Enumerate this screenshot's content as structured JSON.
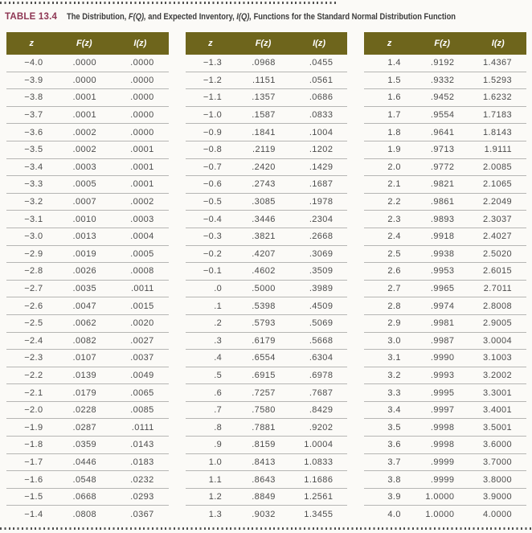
{
  "caption": {
    "label": "TABLE 13.4",
    "title_parts": {
      "p1": "The Distribution, ",
      "fq": "F(Q),",
      "p2": " and Expected Inventory, ",
      "iq": "I(Q),",
      "p3": " Functions for the Standard Normal Distribution Function"
    }
  },
  "columns": {
    "z": "z",
    "f": "F(z)",
    "i": "I(z)"
  },
  "colors": {
    "page_bg": "#fbfaf7",
    "header_bg": "#6e651c",
    "header_text": "#ffffff",
    "caption_label": "#8e3653",
    "title_text": "#3b3b3b",
    "body_text": "#4c4c4c",
    "rule": "#b6b6b4",
    "dots": "#515150"
  },
  "table": {
    "groups": [
      {
        "rows": [
          [
            "−4.0",
            ".0000",
            ".0000"
          ],
          [
            "−3.9",
            ".0000",
            ".0000"
          ],
          [
            "−3.8",
            ".0001",
            ".0000"
          ],
          [
            "−3.7",
            ".0001",
            ".0000"
          ],
          [
            "−3.6",
            ".0002",
            ".0000"
          ],
          [
            "−3.5",
            ".0002",
            ".0001"
          ],
          [
            "−3.4",
            ".0003",
            ".0001"
          ],
          [
            "−3.3",
            ".0005",
            ".0001"
          ],
          [
            "−3.2",
            ".0007",
            ".0002"
          ],
          [
            "−3.1",
            ".0010",
            ".0003"
          ],
          [
            "−3.0",
            ".0013",
            ".0004"
          ],
          [
            "−2.9",
            ".0019",
            ".0005"
          ],
          [
            "−2.8",
            ".0026",
            ".0008"
          ],
          [
            "−2.7",
            ".0035",
            ".0011"
          ],
          [
            "−2.6",
            ".0047",
            ".0015"
          ],
          [
            "−2.5",
            ".0062",
            ".0020"
          ],
          [
            "−2.4",
            ".0082",
            ".0027"
          ],
          [
            "−2.3",
            ".0107",
            ".0037"
          ],
          [
            "−2.2",
            ".0139",
            ".0049"
          ],
          [
            "−2.1",
            ".0179",
            ".0065"
          ],
          [
            "−2.0",
            ".0228",
            ".0085"
          ],
          [
            "−1.9",
            ".0287",
            ".0111"
          ],
          [
            "−1.8",
            ".0359",
            ".0143"
          ],
          [
            "−1.7",
            ".0446",
            ".0183"
          ],
          [
            "−1.6",
            ".0548",
            ".0232"
          ],
          [
            "−1.5",
            ".0668",
            ".0293"
          ],
          [
            "−1.4",
            ".0808",
            ".0367"
          ]
        ]
      },
      {
        "rows": [
          [
            "−1.3",
            ".0968",
            ".0455"
          ],
          [
            "−1.2",
            ".1151",
            ".0561"
          ],
          [
            "−1.1",
            ".1357",
            ".0686"
          ],
          [
            "−1.0",
            ".1587",
            ".0833"
          ],
          [
            "−0.9",
            ".1841",
            ".1004"
          ],
          [
            "−0.8",
            ".2119",
            ".1202"
          ],
          [
            "−0.7",
            ".2420",
            ".1429"
          ],
          [
            "−0.6",
            ".2743",
            ".1687"
          ],
          [
            "−0.5",
            ".3085",
            ".1978"
          ],
          [
            "−0.4",
            ".3446",
            ".2304"
          ],
          [
            "−0.3",
            ".3821",
            ".2668"
          ],
          [
            "−0.2",
            ".4207",
            ".3069"
          ],
          [
            "−0.1",
            ".4602",
            ".3509"
          ],
          [
            ".0",
            ".5000",
            ".3989"
          ],
          [
            ".1",
            ".5398",
            ".4509"
          ],
          [
            ".2",
            ".5793",
            ".5069"
          ],
          [
            ".3",
            ".6179",
            ".5668"
          ],
          [
            ".4",
            ".6554",
            ".6304"
          ],
          [
            ".5",
            ".6915",
            ".6978"
          ],
          [
            ".6",
            ".7257",
            ".7687"
          ],
          [
            ".7",
            ".7580",
            ".8429"
          ],
          [
            ".8",
            ".7881",
            ".9202"
          ],
          [
            ".9",
            ".8159",
            "1.0004"
          ],
          [
            "1.0",
            ".8413",
            "1.0833"
          ],
          [
            "1.1",
            ".8643",
            "1.1686"
          ],
          [
            "1.2",
            ".8849",
            "1.2561"
          ],
          [
            "1.3",
            ".9032",
            "1.3455"
          ]
        ]
      },
      {
        "rows": [
          [
            "1.4",
            ".9192",
            "1.4367"
          ],
          [
            "1.5",
            ".9332",
            "1.5293"
          ],
          [
            "1.6",
            ".9452",
            "1.6232"
          ],
          [
            "1.7",
            ".9554",
            "1.7183"
          ],
          [
            "1.8",
            ".9641",
            "1.8143"
          ],
          [
            "1.9",
            ".9713",
            "1.9111"
          ],
          [
            "2.0",
            ".9772",
            "2.0085"
          ],
          [
            "2.1",
            ".9821",
            "2.1065"
          ],
          [
            "2.2",
            ".9861",
            "2.2049"
          ],
          [
            "2.3",
            ".9893",
            "2.3037"
          ],
          [
            "2.4",
            ".9918",
            "2.4027"
          ],
          [
            "2.5",
            ".9938",
            "2.5020"
          ],
          [
            "2.6",
            ".9953",
            "2.6015"
          ],
          [
            "2.7",
            ".9965",
            "2.7011"
          ],
          [
            "2.8",
            ".9974",
            "2.8008"
          ],
          [
            "2.9",
            ".9981",
            "2.9005"
          ],
          [
            "3.0",
            ".9987",
            "3.0004"
          ],
          [
            "3.1",
            ".9990",
            "3.1003"
          ],
          [
            "3.2",
            ".9993",
            "3.2002"
          ],
          [
            "3.3",
            ".9995",
            "3.3001"
          ],
          [
            "3.4",
            ".9997",
            "3.4001"
          ],
          [
            "3.5",
            ".9998",
            "3.5001"
          ],
          [
            "3.6",
            ".9998",
            "3.6000"
          ],
          [
            "3.7",
            ".9999",
            "3.7000"
          ],
          [
            "3.8",
            ".9999",
            "3.8000"
          ],
          [
            "3.9",
            "1.0000",
            "3.9000"
          ],
          [
            "4.0",
            "1.0000",
            "4.0000"
          ]
        ]
      }
    ]
  }
}
